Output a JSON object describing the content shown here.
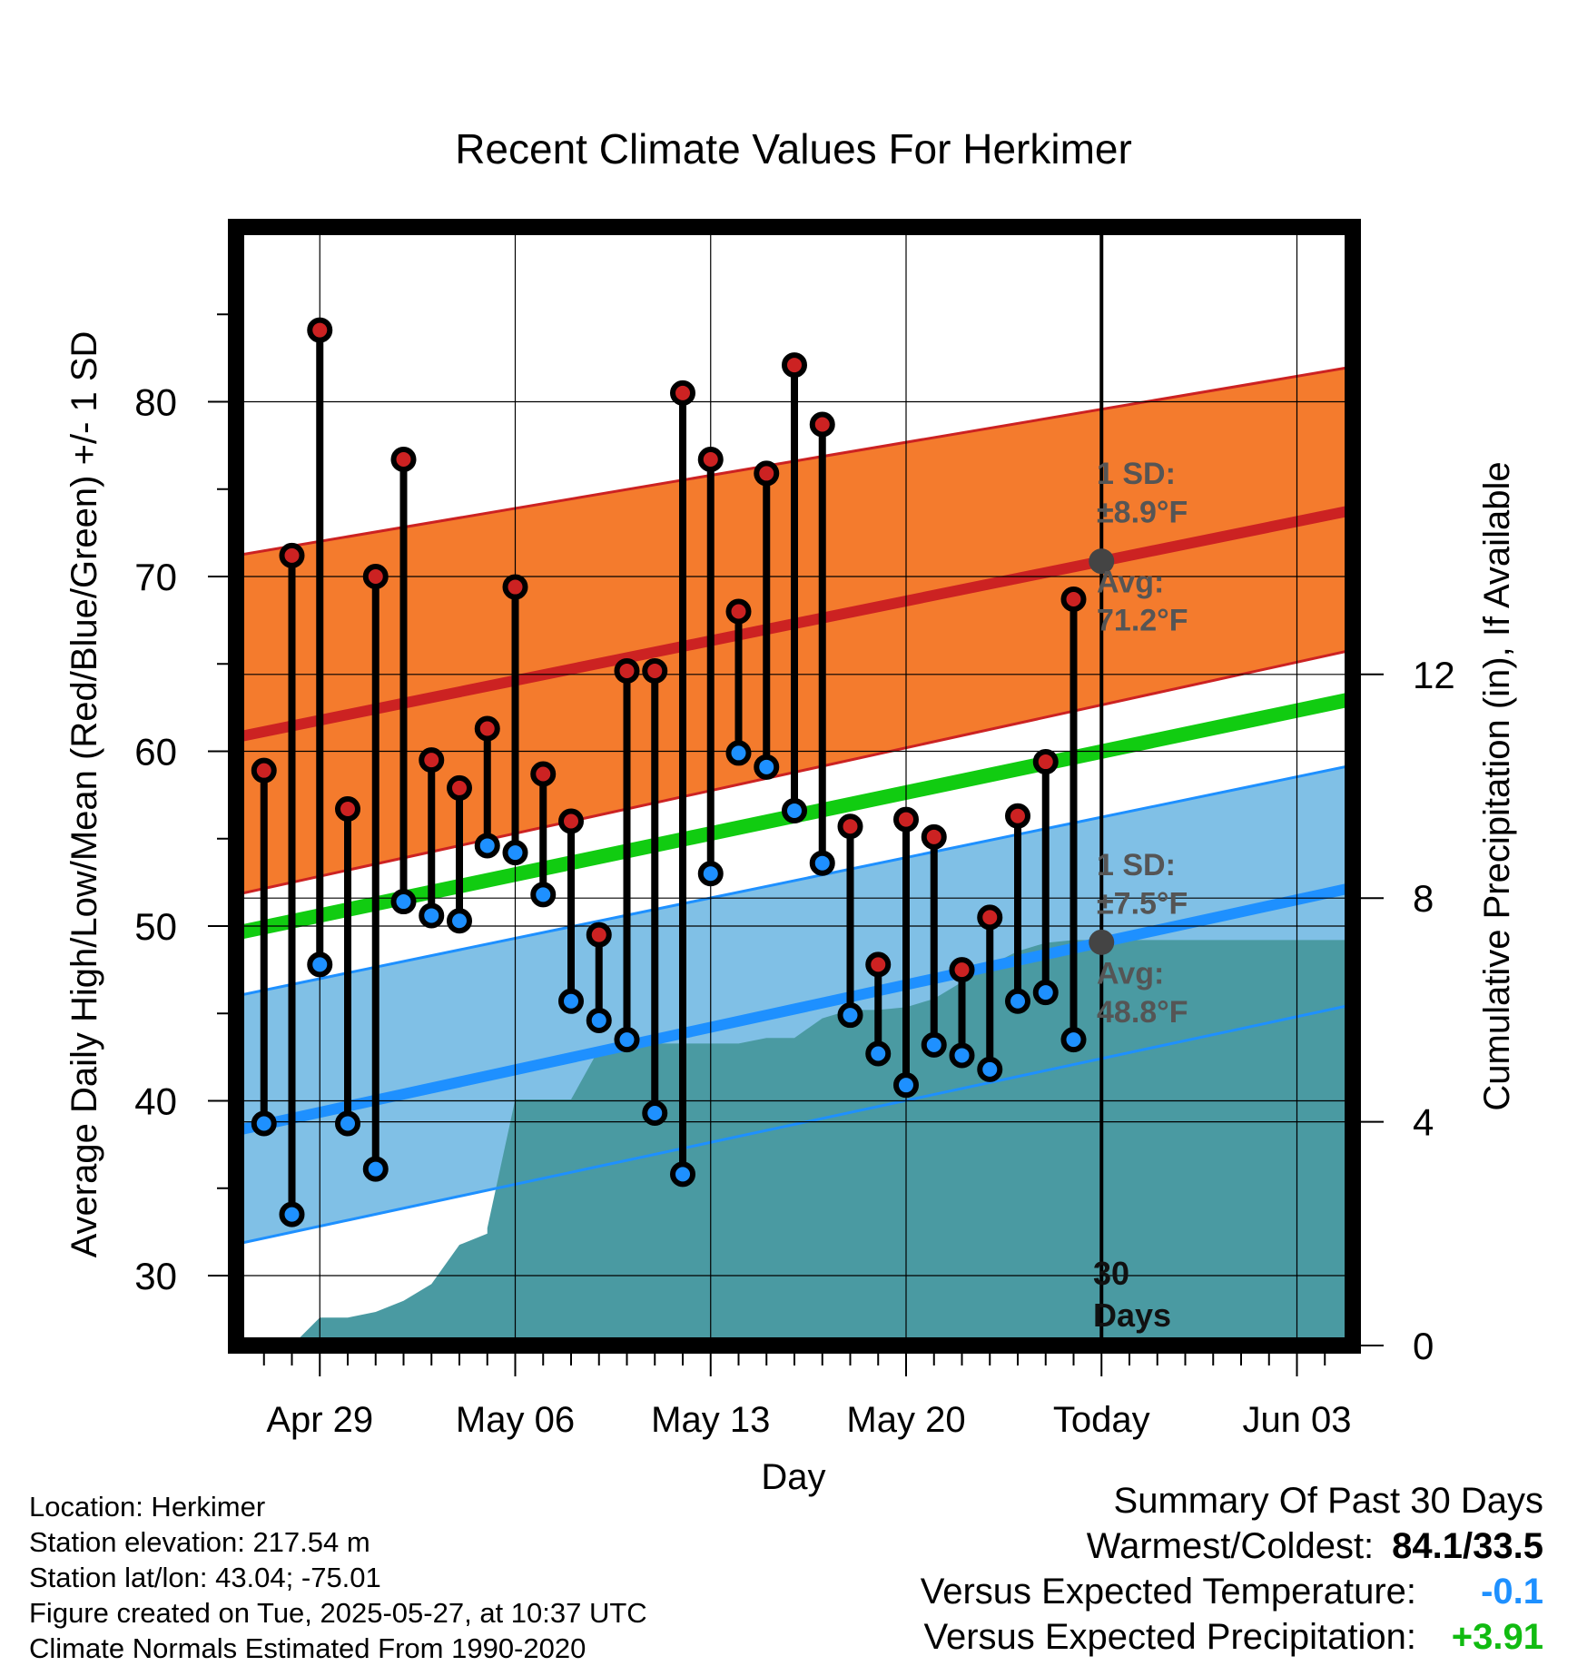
{
  "chart_data": {
    "type": "line",
    "title": "Recent Climate Values For Herkimer",
    "xlabel": "Day",
    "ylabel": "Average Daily High/Low/Mean (Red/Blue/Green) +/- 1 SD",
    "y2label": "Cumulative Precipitation (in), If Available",
    "x_tick_labels": [
      "Apr 29",
      "May 06",
      "May 13",
      "May 20",
      "Today",
      "Jun 03"
    ],
    "x_tick_dates": [
      "2025-04-29",
      "2025-05-06",
      "2025-05-13",
      "2025-05-20",
      "2025-05-27",
      "2025-06-03"
    ],
    "xlim": [
      "2025-04-26",
      "2025-06-05"
    ],
    "ylim": [
      26,
      90
    ],
    "y_ticks": [
      30,
      40,
      50,
      60,
      70,
      80
    ],
    "y2lim": [
      0,
      20
    ],
    "y2_ticks": [
      0,
      4,
      8,
      12
    ],
    "grid": true,
    "today": "2025-05-27",
    "colors": {
      "high_band": "#F47B2D",
      "high_line": "#CC2222",
      "low_band": "#80C0E6",
      "low_line": "#1E90FF",
      "mean_line": "#11CC11",
      "precip": "#4A9AA2",
      "high_marker": "#CC2222",
      "low_marker": "#1E90FF",
      "avg_marker": "#444444",
      "annot_text": "#555555"
    },
    "normals": {
      "x": [
        "2025-04-26",
        "2025-06-05"
      ],
      "high_mean": [
        60.8,
        73.8
      ],
      "high_upper": [
        71.2,
        82.0
      ],
      "high_lower": [
        51.8,
        65.8
      ],
      "low_mean": [
        38.3,
        52.2
      ],
      "low_upper": [
        46.0,
        59.2
      ],
      "low_lower": [
        31.8,
        45.5
      ],
      "mean": [
        49.6,
        63.0
      ]
    },
    "daily": {
      "dates": [
        "2025-04-27",
        "2025-04-28",
        "2025-04-29",
        "2025-04-30",
        "2025-05-01",
        "2025-05-02",
        "2025-05-03",
        "2025-05-04",
        "2025-05-05",
        "2025-05-06",
        "2025-05-07",
        "2025-05-08",
        "2025-05-09",
        "2025-05-10",
        "2025-05-11",
        "2025-05-12",
        "2025-05-13",
        "2025-05-14",
        "2025-05-15",
        "2025-05-16",
        "2025-05-17",
        "2025-05-18",
        "2025-05-19",
        "2025-05-20",
        "2025-05-21",
        "2025-05-22",
        "2025-05-23",
        "2025-05-24",
        "2025-05-25",
        "2025-05-26"
      ],
      "high": [
        58.9,
        71.2,
        84.1,
        56.7,
        70.0,
        76.7,
        59.5,
        57.9,
        61.3,
        69.4,
        58.7,
        56.0,
        49.5,
        64.6,
        64.6,
        80.5,
        76.7,
        68.0,
        75.9,
        82.1,
        78.7,
        55.7,
        47.8,
        56.1,
        55.1,
        47.5,
        50.5,
        56.3,
        59.4,
        68.7
      ],
      "low": [
        38.7,
        33.5,
        47.8,
        38.7,
        36.1,
        51.4,
        50.6,
        50.3,
        54.6,
        54.2,
        51.8,
        45.7,
        44.6,
        43.5,
        39.3,
        35.8,
        53.0,
        59.9,
        59.1,
        56.6,
        53.6,
        44.9,
        42.7,
        40.9,
        43.2,
        42.6,
        41.8,
        45.7,
        46.2,
        43.5
      ]
    },
    "precip": {
      "x": [
        "2025-04-26",
        "2025-04-26",
        "2025-04-28",
        "2025-04-29",
        "2025-04-30",
        "2025-05-01",
        "2025-05-02",
        "2025-05-03",
        "2025-05-04",
        "2025-05-05",
        "2025-05-05",
        "2025-05-06",
        "2025-05-07",
        "2025-05-08",
        "2025-05-09",
        "2025-05-10",
        "2025-05-11",
        "2025-05-12",
        "2025-05-13",
        "2025-05-14",
        "2025-05-15",
        "2025-05-16",
        "2025-05-17",
        "2025-05-18",
        "2025-05-19",
        "2025-05-20",
        "2025-05-21",
        "2025-05-22",
        "2025-05-23",
        "2025-05-24",
        "2025-05-25",
        "2025-05-26",
        "2025-06-05"
      ],
      "y": [
        0,
        0,
        0,
        0.5,
        0.5,
        0.6,
        0.8,
        1.1,
        1.8,
        2.0,
        2.1,
        4.4,
        4.4,
        4.4,
        5.3,
        5.35,
        5.4,
        5.4,
        5.4,
        5.4,
        5.5,
        5.5,
        5.85,
        6.0,
        6.0,
        6.05,
        6.2,
        6.5,
        6.8,
        7.05,
        7.2,
        7.25,
        7.25
      ]
    },
    "annotations": {
      "high_sd": "1 SD:",
      "high_sd_value": "±8.9°F",
      "high_avg": "Avg:",
      "high_avg_value": "71.2°F",
      "low_sd": "1 SD:",
      "low_sd_value": "±7.5°F",
      "low_avg": "Avg:",
      "low_avg_value": "48.8°F",
      "days_number": "30",
      "days_word": "Days"
    }
  },
  "footer": {
    "location": "Location: Herkimer",
    "elevation": "Station elevation: 217.54 m",
    "latlon": "Station lat/lon: 43.04; -75.01",
    "created": "Figure created on Tue, 2025-05-27, at 10:37 UTC",
    "normals": "Climate Normals Estimated From 1990-2020"
  },
  "summary": {
    "heading": "Summary Of Past 30 Days",
    "warm_cold_label": "Warmest/Coldest:",
    "warm_cold_value": "84.1/33.5",
    "temp_label": "Versus Expected Temperature:",
    "temp_value": "-0.1",
    "temp_color": "#1E90FF",
    "precip_label": "Versus Expected Precipitation:",
    "precip_value": "+3.91",
    "precip_color": "#11BB11"
  }
}
